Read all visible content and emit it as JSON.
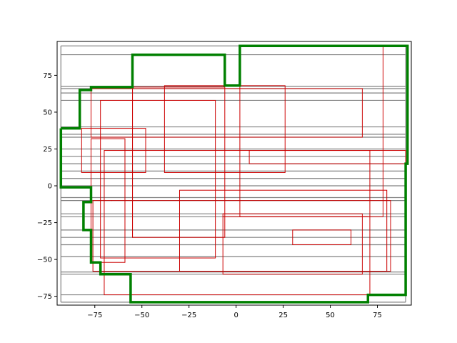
{
  "chart_data": {
    "type": "line",
    "title": "",
    "xlabel": "",
    "ylabel": "",
    "xlim": [
      -95,
      93
    ],
    "ylim": [
      -81,
      98
    ],
    "x_ticks": [
      -75,
      -50,
      -25,
      0,
      25,
      50,
      75
    ],
    "y_ticks": [
      -75,
      -50,
      -25,
      0,
      25,
      50,
      75
    ],
    "x_tick_labels": [
      "−75",
      "−50",
      "−25",
      "0",
      "25",
      "50",
      "75"
    ],
    "y_tick_labels": [
      "−75",
      "−50",
      "−25",
      "0",
      "25",
      "50",
      "75"
    ],
    "grid": false,
    "legend": "none",
    "colors": {
      "gray_lines": "#808080",
      "red_boxes": "#cc0000",
      "green_path": "#008000",
      "axes": "#000000"
    },
    "gray_bounds": {
      "x": [
        -93,
        90
      ],
      "y": [
        -79,
        95
      ]
    },
    "gray_lines_y": [
      -79,
      -74,
      -60,
      -58.5,
      -48,
      -40,
      -35,
      -30,
      -21,
      -19,
      -10,
      -8,
      0,
      5,
      10,
      15,
      20,
      25,
      33,
      35,
      40,
      58,
      63,
      66,
      67.5,
      89,
      95
    ],
    "red_boxes": [
      {
        "x0": -70,
        "y0": -74,
        "x1": 71,
        "y1": 24
      },
      {
        "x0": -82,
        "y0": 9,
        "x1": -48,
        "y1": 39
      },
      {
        "x0": -77,
        "y0": -52,
        "x1": -59,
        "y1": 32
      },
      {
        "x0": -72,
        "y0": -49,
        "x1": -11,
        "y1": 58
      },
      {
        "x0": -76,
        "y0": -58,
        "x1": 82,
        "y1": -10
      },
      {
        "x0": -55,
        "y0": -35,
        "x1": -6,
        "y1": 67
      },
      {
        "x0": -38,
        "y0": 9,
        "x1": 26,
        "y1": 68
      },
      {
        "x0": -30,
        "y0": -58,
        "x1": 80,
        "y1": -3
      },
      {
        "x0": -7,
        "y0": -60,
        "x1": 67,
        "y1": -19
      },
      {
        "x0": 2,
        "y0": -21,
        "x1": 78,
        "y1": 95
      },
      {
        "x0": 7,
        "y0": 15,
        "x1": 90,
        "y1": 24
      },
      {
        "x0": -77,
        "y0": 33,
        "x1": 67,
        "y1": 66
      },
      {
        "x0": -55,
        "y0": -35,
        "x1": -55,
        "y1": 66
      },
      {
        "x0": -7,
        "y0": -21,
        "x1": 70,
        "y1": -21
      },
      {
        "x0": 30,
        "y0": -40,
        "x1": 61,
        "y1": -30
      },
      {
        "x0": -66,
        "y0": -10,
        "x1": -66,
        "y1": -10
      }
    ],
    "green_path": [
      [
        -93,
        39
      ],
      [
        -93,
        -1
      ],
      [
        -77,
        -1
      ],
      [
        -77,
        -11
      ],
      [
        -81,
        -11
      ],
      [
        -81,
        -30
      ],
      [
        -77,
        -30
      ],
      [
        -77,
        -52
      ],
      [
        -72,
        -52
      ],
      [
        -72,
        -60
      ],
      [
        -56,
        -60
      ],
      [
        -56,
        -79
      ],
      [
        70,
        -79
      ],
      [
        70,
        -74
      ],
      [
        90,
        -74
      ],
      [
        90,
        15
      ],
      [
        91,
        15
      ],
      [
        91,
        95
      ],
      [
        2,
        95
      ],
      [
        2,
        68
      ],
      [
        -6,
        68
      ],
      [
        -6,
        89
      ],
      [
        -55,
        89
      ],
      [
        -55,
        67
      ],
      [
        -77,
        67
      ],
      [
        -77,
        65
      ],
      [
        -83,
        65
      ],
      [
        -83,
        39
      ],
      [
        -93,
        39
      ]
    ]
  }
}
